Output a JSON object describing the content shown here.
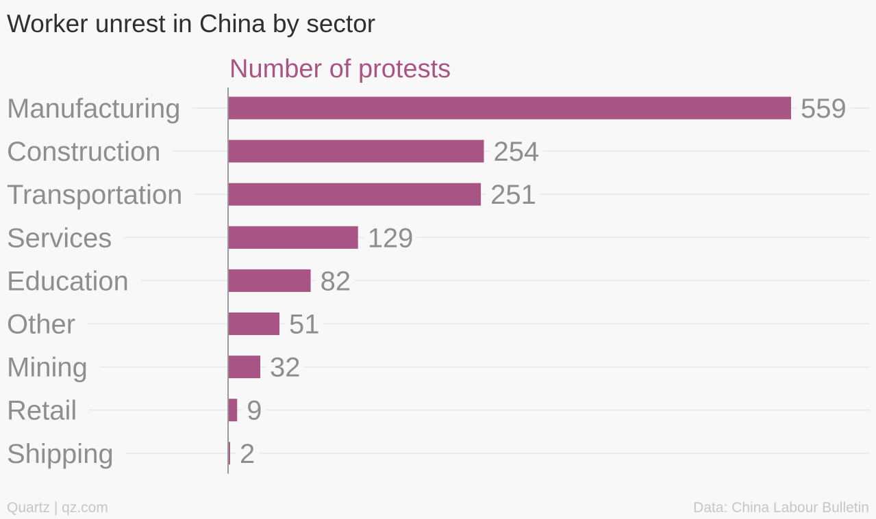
{
  "title": "Worker unrest in China by sector",
  "footer": {
    "credit": "Quartz | qz.com",
    "source": "Data: China Labour Bulletin"
  },
  "colors": {
    "bar": "#a85585",
    "axis_title": "#a85585",
    "label": "#8e8e8e",
    "gridline": "#e6e6e6",
    "axis_line": "#9a9a9a",
    "background": "#f8f8f8"
  },
  "chart_data": {
    "type": "bar",
    "orientation": "horizontal",
    "title": "Worker unrest in China by sector",
    "xlabel": "Number of protests",
    "ylabel": "",
    "categories": [
      "Manufacturing",
      "Construction",
      "Transportation",
      "Services",
      "Education",
      "Other",
      "Mining",
      "Retail",
      "Shipping"
    ],
    "values": [
      559,
      254,
      251,
      129,
      82,
      51,
      32,
      9,
      2
    ],
    "xlim": [
      0,
      559
    ],
    "grid": true,
    "legend": "none"
  }
}
